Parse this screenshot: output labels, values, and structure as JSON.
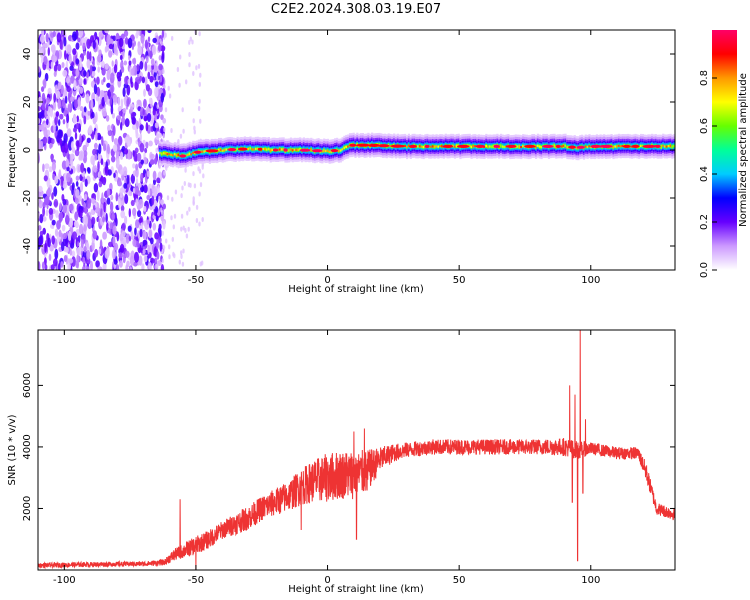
{
  "title": "C2E2.2024.308.03.19.E07",
  "chart_data": [
    {
      "type": "heatmap",
      "xlabel": "Height of straight line (km)",
      "ylabel": "Frequency (Hz)",
      "xlim": [
        -110,
        132
      ],
      "ylim": [
        -50,
        50
      ],
      "x_ticks": [
        -100,
        -50,
        0,
        50,
        100
      ],
      "y_ticks": [
        -40,
        -20,
        0,
        20,
        40
      ],
      "colorbar": {
        "label": "Normalized spectral amplitude",
        "range": [
          0,
          1
        ],
        "ticks": [
          0.0,
          0.2,
          0.4,
          0.6,
          0.8
        ],
        "colors": [
          "#ffffff",
          "#cc99ff",
          "#6600ff",
          "#0000ff",
          "#00ccff",
          "#00ff99",
          "#66ff00",
          "#ffff00",
          "#ff9900",
          "#ff0000",
          "#ff0066"
        ]
      },
      "ridge": {
        "description_free": true,
        "points": [
          [
            -62,
            -1.5
          ],
          [
            -55,
            -2.5
          ],
          [
            -50,
            -1
          ],
          [
            -40,
            0
          ],
          [
            -30,
            0.5
          ],
          [
            -20,
            0
          ],
          [
            -10,
            0
          ],
          [
            0,
            -0.5
          ],
          [
            5,
            0
          ],
          [
            8,
            2
          ],
          [
            15,
            2
          ],
          [
            30,
            1.5
          ],
          [
            50,
            1.5
          ],
          [
            70,
            1.5
          ],
          [
            90,
            1.5
          ],
          [
            95,
            1
          ],
          [
            100,
            1.5
          ],
          [
            115,
            1.5
          ],
          [
            132,
            1.5
          ]
        ]
      }
    },
    {
      "type": "line",
      "xlabel": "Height of straight line (km)",
      "ylabel": "SNR (10 * v/v)",
      "xlim": [
        -110,
        132
      ],
      "ylim": [
        0,
        7800
      ],
      "x_ticks": [
        -100,
        -50,
        0,
        50,
        100
      ],
      "y_ticks": [
        2000,
        4000,
        6000
      ],
      "color": "#ee3333",
      "envelope": {
        "x": [
          -110,
          -90,
          -70,
          -62,
          -58,
          -54,
          -50,
          -45,
          -40,
          -35,
          -30,
          -25,
          -20,
          -15,
          -10,
          -5,
          0,
          5,
          10,
          15,
          20,
          25,
          30,
          40,
          50,
          60,
          70,
          80,
          90,
          95,
          100,
          110,
          118,
          121,
          125,
          132
        ],
        "y": [
          150,
          180,
          200,
          250,
          500,
          650,
          800,
          1000,
          1300,
          1500,
          1700,
          2000,
          2200,
          2400,
          2700,
          2900,
          3000,
          3100,
          3100,
          3200,
          3600,
          3800,
          3900,
          4000,
          4000,
          4000,
          4000,
          4000,
          4000,
          3900,
          3950,
          3800,
          3800,
          3200,
          2000,
          1800
        ],
        "noise": [
          80,
          80,
          80,
          100,
          200,
          250,
          300,
          300,
          300,
          350,
          400,
          400,
          450,
          500,
          600,
          700,
          800,
          800,
          800,
          700,
          400,
          300,
          250,
          250,
          250,
          250,
          250,
          250,
          300,
          300,
          200,
          200,
          200,
          300,
          200,
          200
        ]
      },
      "spikes": [
        [
          -56,
          2300
        ],
        [
          -50,
          0
        ],
        [
          -10,
          1300
        ],
        [
          -8,
          3300
        ],
        [
          0,
          3300
        ],
        [
          10,
          4500
        ],
        [
          11,
          1000
        ],
        [
          14,
          4600
        ],
        [
          15,
          2600
        ],
        [
          92,
          6000
        ],
        [
          93,
          2200
        ],
        [
          94,
          5700
        ],
        [
          95,
          300
        ],
        [
          96,
          7800
        ],
        [
          97,
          2500
        ],
        [
          98,
          4900
        ]
      ]
    }
  ]
}
